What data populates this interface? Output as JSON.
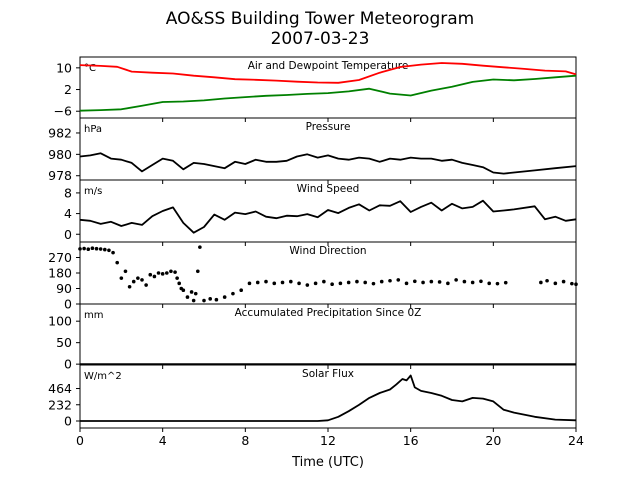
{
  "figure": {
    "title_line1": "AO&SS Building Tower Meteorogram",
    "title_line2": "2007-03-23"
  },
  "chart_data": [
    {
      "type": "line",
      "title": "Air and Dewpoint Temperature",
      "unit": "°C",
      "x_range": [
        0,
        24
      ],
      "ylim": [
        -8.5,
        14
      ],
      "yticks": [
        10,
        2,
        -6
      ],
      "ytick_labels": [
        "10",
        "2",
        "−6"
      ],
      "series": [
        {
          "color": "#ff0000",
          "x": [
            0,
            1,
            1.8,
            2.5,
            3.5,
            4.5,
            5.5,
            6.5,
            7.5,
            8.5,
            9.5,
            10.5,
            11.5,
            12.5,
            13.5,
            14.5,
            15.5,
            16.5,
            17.5,
            18.5,
            19.5,
            20.5,
            21.5,
            22.5,
            23.5,
            24
          ],
          "y": [
            11,
            10.7,
            10.4,
            8.6,
            8.2,
            7.9,
            7.1,
            6.5,
            5.8,
            5.6,
            5.3,
            4.9,
            4.6,
            4.5,
            5.5,
            8.2,
            10.3,
            11.2,
            11.8,
            11.5,
            10.8,
            10.2,
            9.6,
            9.0,
            8.7,
            7.6
          ]
        },
        {
          "color": "#008000",
          "x": [
            0,
            1,
            2,
            3,
            4,
            5,
            6,
            7,
            8,
            9,
            10,
            11,
            12,
            13,
            14,
            15,
            16,
            17,
            18,
            19,
            20,
            21,
            22,
            23,
            24
          ],
          "y": [
            -5.8,
            -5.6,
            -5.3,
            -4.0,
            -2.6,
            -2.4,
            -2.0,
            -1.3,
            -0.8,
            -0.3,
            0.0,
            0.4,
            0.7,
            1.3,
            2.3,
            0.5,
            -0.2,
            1.6,
            3.0,
            4.8,
            5.7,
            5.4,
            5.9,
            6.5,
            7.1
          ]
        }
      ]
    },
    {
      "type": "line",
      "title": "Pressure",
      "unit": "hPa",
      "x_range": [
        0,
        24
      ],
      "ylim": [
        977.6,
        983.4
      ],
      "yticks": [
        982,
        980,
        978
      ],
      "ytick_labels": [
        "982",
        "980",
        "978"
      ],
      "series": [
        {
          "color": "#000000",
          "x": [
            0,
            0.5,
            1,
            1.5,
            2,
            2.5,
            3,
            3.5,
            4,
            4.5,
            5,
            5.5,
            6,
            6.5,
            7,
            7.5,
            8,
            8.5,
            9,
            9.5,
            10,
            10.5,
            11,
            11.5,
            12,
            12.5,
            13,
            13.5,
            14,
            14.5,
            15,
            15.5,
            16,
            16.5,
            17,
            17.5,
            18,
            18.5,
            19,
            19.5,
            20,
            20.5,
            21,
            22,
            23,
            24
          ],
          "y": [
            979.8,
            979.9,
            980.1,
            979.6,
            979.5,
            979.2,
            978.4,
            979.0,
            979.6,
            979.4,
            978.6,
            979.2,
            979.1,
            978.9,
            978.7,
            979.3,
            979.1,
            979.5,
            979.3,
            979.3,
            979.4,
            979.8,
            980.0,
            979.7,
            979.9,
            979.6,
            979.5,
            979.7,
            979.6,
            979.3,
            979.6,
            979.5,
            979.7,
            979.6,
            979.6,
            979.4,
            979.5,
            979.2,
            979.0,
            978.8,
            978.3,
            978.2,
            978.3,
            978.5,
            978.7,
            978.9
          ]
        }
      ]
    },
    {
      "type": "line",
      "title": "Wind Speed",
      "unit": "m/s",
      "x_range": [
        0,
        24
      ],
      "ylim": [
        -1.5,
        10.5
      ],
      "yticks": [
        8,
        4,
        0
      ],
      "ytick_labels": [
        "8",
        "4",
        "0"
      ],
      "series": [
        {
          "color": "#000000",
          "x": [
            0,
            0.5,
            1,
            1.5,
            2,
            2.5,
            3,
            3.5,
            4,
            4.5,
            5,
            5.5,
            6,
            6.5,
            7,
            7.5,
            8,
            8.5,
            9,
            9.5,
            10,
            10.5,
            11,
            11.5,
            12,
            12.5,
            13,
            13.5,
            14,
            14.5,
            15,
            15.5,
            16,
            16.5,
            17,
            17.5,
            18,
            18.5,
            19,
            19.5,
            20,
            20.5,
            21,
            22,
            22.5,
            23,
            23.5,
            24
          ],
          "y": [
            2.8,
            2.6,
            2.0,
            2.4,
            1.6,
            2.2,
            1.8,
            3.5,
            4.5,
            5.2,
            2.2,
            0.3,
            1.4,
            3.8,
            2.8,
            4.2,
            3.9,
            4.4,
            3.4,
            3.1,
            3.6,
            3.5,
            3.9,
            3.3,
            4.7,
            4.1,
            5.1,
            5.8,
            4.6,
            5.6,
            5.5,
            6.4,
            4.3,
            5.3,
            6.1,
            4.6,
            5.9,
            5.0,
            5.3,
            6.5,
            4.4,
            4.6,
            4.8,
            5.4,
            2.9,
            3.4,
            2.6,
            2.9
          ]
        }
      ]
    },
    {
      "type": "scatter",
      "title": "Wind Direction",
      "unit": "",
      "x_range": [
        0,
        24
      ],
      "ylim": [
        0,
        360
      ],
      "yticks": [
        270,
        180,
        90,
        0
      ],
      "ytick_labels": [
        "270",
        "180",
        "90",
        "0"
      ],
      "series": [
        {
          "color": "#000000",
          "x": [
            0,
            0.2,
            0.4,
            0.6,
            0.8,
            1.0,
            1.2,
            1.4,
            1.6,
            1.8,
            2.0,
            2.2,
            2.4,
            2.6,
            2.8,
            3.0,
            3.2,
            3.4,
            3.6,
            3.8,
            4.0,
            4.2,
            4.4,
            4.6,
            4.7,
            4.8,
            4.9,
            5.0,
            5.2,
            5.4,
            5.5,
            5.6,
            5.7,
            5.8,
            6.0,
            6.3,
            6.6,
            7.0,
            7.4,
            7.8,
            8.2,
            8.6,
            9.0,
            9.4,
            9.8,
            10.2,
            10.6,
            11.0,
            11.4,
            11.8,
            12.2,
            12.6,
            13.0,
            13.4,
            13.8,
            14.2,
            14.6,
            15.0,
            15.4,
            15.8,
            16.2,
            16.6,
            17.0,
            17.4,
            17.8,
            18.2,
            18.6,
            19.0,
            19.4,
            19.8,
            20.2,
            20.6,
            22.3,
            22.6,
            23.0,
            23.4,
            23.8,
            24.0
          ],
          "y": [
            320,
            322,
            318,
            324,
            321,
            319,
            316,
            312,
            298,
            240,
            150,
            190,
            100,
            130,
            150,
            140,
            110,
            170,
            160,
            180,
            175,
            180,
            190,
            185,
            150,
            120,
            90,
            80,
            40,
            70,
            20,
            60,
            190,
            330,
            20,
            30,
            25,
            40,
            60,
            80,
            120,
            125,
            130,
            120,
            125,
            130,
            120,
            110,
            120,
            130,
            115,
            120,
            125,
            130,
            125,
            118,
            130,
            135,
            140,
            120,
            132,
            125,
            130,
            128,
            120,
            140,
            130,
            125,
            132,
            120,
            118,
            124,
            125,
            135,
            120,
            130,
            118,
            115
          ]
        }
      ]
    },
    {
      "type": "line",
      "title": "Accumulated Precipitation Since 0Z",
      "unit": "mm",
      "x_range": [
        0,
        24
      ],
      "ylim": [
        -2,
        140
      ],
      "yticks": [
        100,
        50,
        0
      ],
      "ytick_labels": [
        "100",
        "50",
        "0"
      ],
      "series": [
        {
          "color": "#000000",
          "x": [
            0,
            24
          ],
          "y": [
            0,
            0
          ]
        }
      ]
    },
    {
      "type": "line",
      "title": "Solar Flux",
      "unit": "W/m^2",
      "x_range": [
        0,
        24
      ],
      "ylim": [
        -100,
        800
      ],
      "yticks": [
        464,
        232,
        0
      ],
      "ytick_labels": [
        "464",
        "232",
        "0"
      ],
      "xticks": [
        0,
        4,
        8,
        12,
        16,
        20,
        24
      ],
      "xtick_labels": [
        "0",
        "4",
        "8",
        "12",
        "16",
        "20",
        "24"
      ],
      "xlabel": "Time (UTC)",
      "series": [
        {
          "color": "#000000",
          "x": [
            0,
            2,
            4,
            6,
            8,
            10,
            11.5,
            12,
            12.5,
            13,
            13.5,
            14,
            14.5,
            15,
            15.3,
            15.6,
            15.8,
            16.0,
            16.2,
            16.5,
            17.0,
            17.5,
            18.0,
            18.5,
            19.0,
            19.5,
            20.0,
            20.5,
            21.0,
            22.0,
            23.0,
            24.0
          ],
          "y": [
            0,
            0,
            0,
            0,
            0,
            0,
            0,
            10,
            60,
            140,
            230,
            330,
            400,
            450,
            520,
            600,
            580,
            650,
            480,
            430,
            400,
            360,
            300,
            280,
            330,
            320,
            280,
            160,
            120,
            60,
            20,
            10
          ]
        }
      ]
    }
  ]
}
